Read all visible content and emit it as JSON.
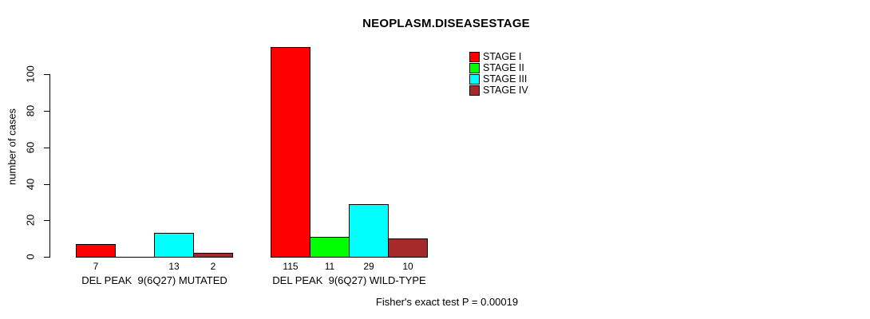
{
  "chart_data": {
    "type": "bar",
    "title": "NEOPLASM.DISEASESTAGE",
    "xlabel": "",
    "ylabel": "number of cases",
    "ylim": [
      0,
      115
    ],
    "yticks": [
      0,
      20,
      40,
      60,
      80,
      100
    ],
    "grid": false,
    "legend_position": "top-right",
    "series": [
      {
        "name": "STAGE I",
        "color": "#FF0000"
      },
      {
        "name": "STAGE II",
        "color": "#00FF00"
      },
      {
        "name": "STAGE III",
        "color": "#00FFFF"
      },
      {
        "name": "STAGE IV",
        "color": "#A52A2A"
      }
    ],
    "groups": [
      {
        "label": "DEL PEAK  9(6Q27) MUTATED",
        "values": [
          7,
          0,
          13,
          2
        ],
        "bar_labels": [
          "7",
          "",
          "13",
          "2"
        ]
      },
      {
        "label": "DEL PEAK  9(6Q27) WILD-TYPE",
        "values": [
          115,
          11,
          29,
          10
        ],
        "bar_labels": [
          "115",
          "11",
          "29",
          "10"
        ]
      }
    ],
    "annotation": "Fisher's exact test P = 0.00019"
  }
}
